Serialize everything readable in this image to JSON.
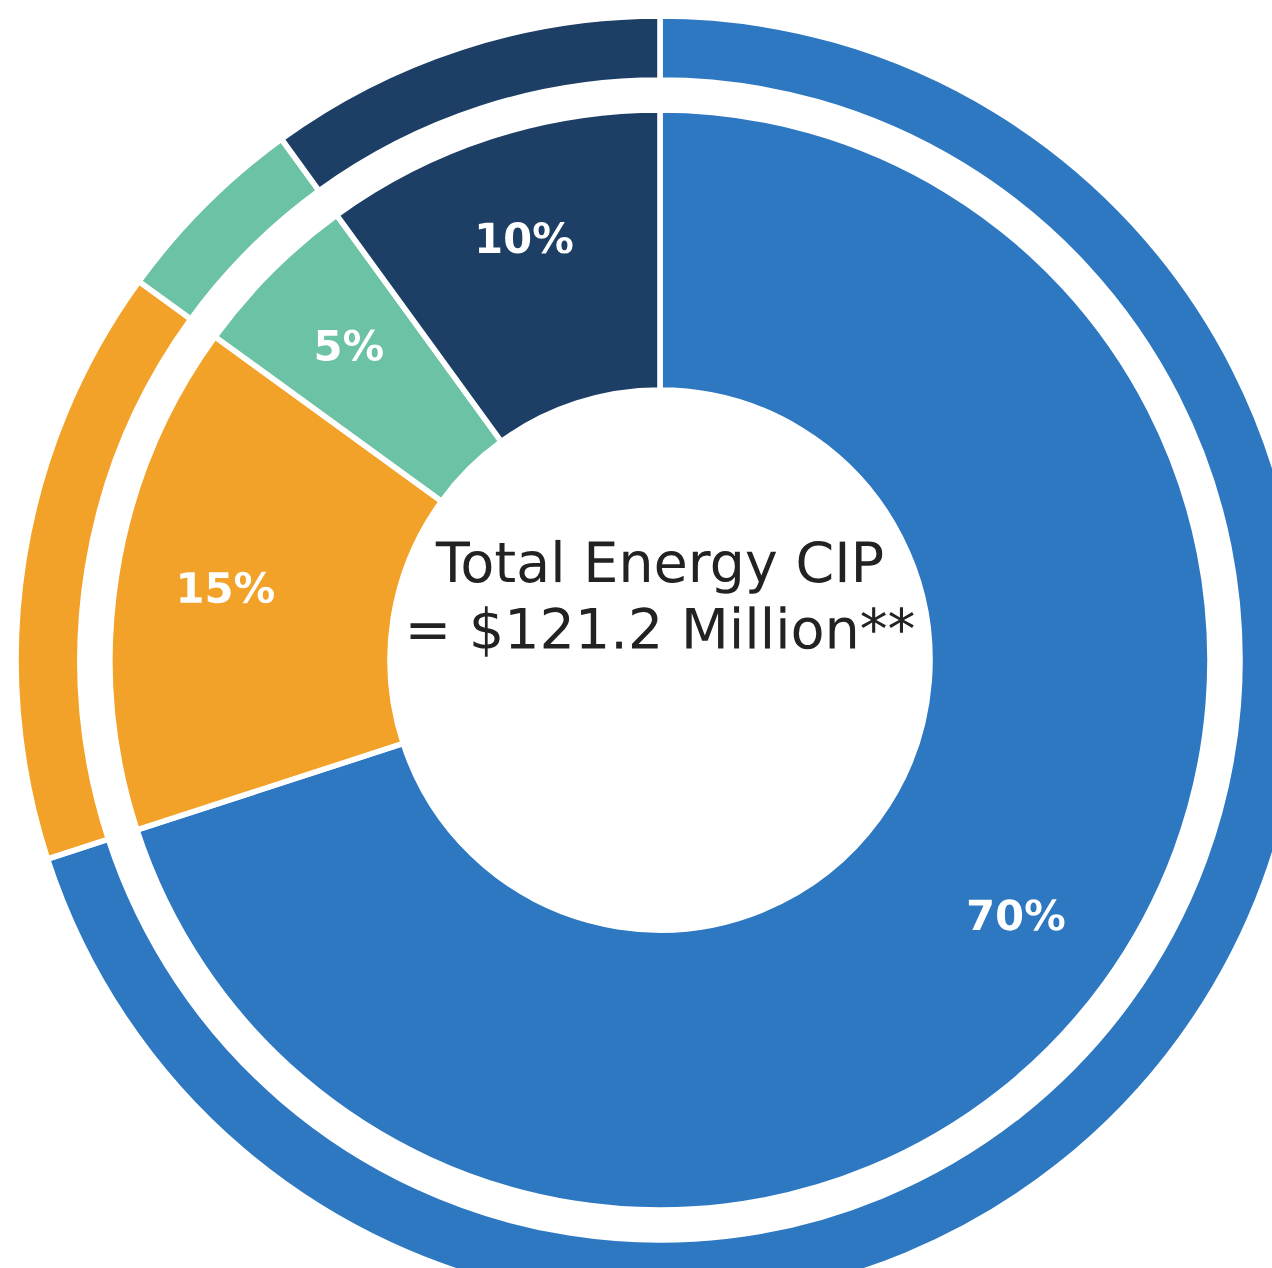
{
  "chart_data": {
    "type": "donut",
    "title": "Total Energy CIP\n= $121.2 Million**",
    "categories": [
      null,
      null,
      null,
      null
    ],
    "series": [
      {
        "values": [
          70,
          15,
          5,
          10
        ],
        "colors": [
          "#2e78c2",
          "#f3a229",
          "#6cc2a4",
          "#1d3f66"
        ],
        "value_labels": [
          "70%",
          "15%",
          "5%",
          "10%"
        ]
      },
      {
        "values": [
          70,
          15,
          5,
          10
        ],
        "colors": [
          "#2e78c2",
          "#f3a229",
          "#6cc2a4",
          "#1d3f66"
        ]
      }
    ]
  }
}
